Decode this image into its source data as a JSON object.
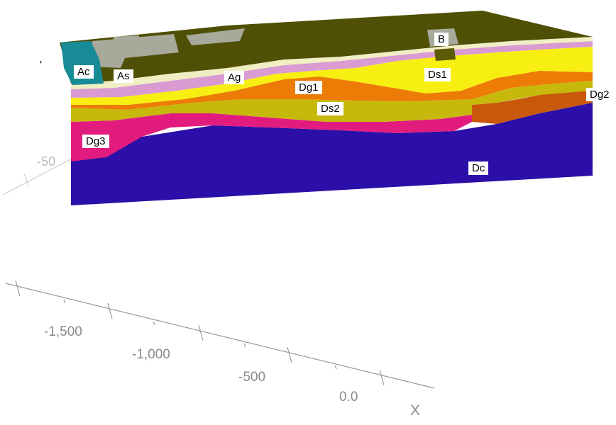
{
  "layers": {
    "B": {
      "label": "B",
      "color": "#5b5b05"
    },
    "Ac": {
      "label": "Ac",
      "color": "#178c96"
    },
    "As": {
      "label": "As",
      "color": "#f0efc4"
    },
    "Ag": {
      "label": "Ag",
      "color": "#d99bd2"
    },
    "Ds1": {
      "label": "Ds1",
      "color": "#f7ef12"
    },
    "Dg1": {
      "label": "Dg1",
      "color": "#ec7c06"
    },
    "Ds2": {
      "label": "Ds2",
      "color": "#c7b80c"
    },
    "Dg2": {
      "label": "Dg2",
      "color": "#c8580a"
    },
    "Dg3": {
      "label": "Dg3",
      "color": "#e21b7e"
    },
    "Dc": {
      "label": "Dc",
      "color": "#2b0fa8"
    }
  },
  "surface_color": "#4f4f05",
  "fill_color": "#a7a99a",
  "axis": {
    "x_label": "X",
    "x_ticks": [
      "-1,500",
      "-1,000",
      "-500",
      "0.0"
    ],
    "partial_tick": "-50",
    "stray_mark": "'"
  }
}
